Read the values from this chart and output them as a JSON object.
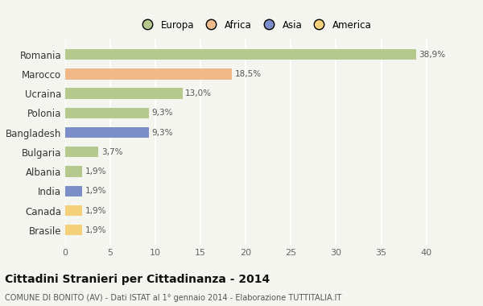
{
  "countries": [
    "Romania",
    "Marocco",
    "Ucraina",
    "Polonia",
    "Bangladesh",
    "Bulgaria",
    "Albania",
    "India",
    "Canada",
    "Brasile"
  ],
  "values": [
    38.9,
    18.5,
    13.0,
    9.3,
    9.3,
    3.7,
    1.9,
    1.9,
    1.9,
    1.9
  ],
  "labels": [
    "38,9%",
    "18,5%",
    "13,0%",
    "9,3%",
    "9,3%",
    "3,7%",
    "1,9%",
    "1,9%",
    "1,9%",
    "1,9%"
  ],
  "colors": [
    "#b5c98e",
    "#f0b98a",
    "#b5c98e",
    "#b5c98e",
    "#7b8ec8",
    "#b5c98e",
    "#b5c98e",
    "#7b8ec8",
    "#f5d07a",
    "#f5d07a"
  ],
  "legend_labels": [
    "Europa",
    "Africa",
    "Asia",
    "America"
  ],
  "legend_colors": [
    "#b5c98e",
    "#f0b98a",
    "#7b8ec8",
    "#f5d07a"
  ],
  "xlim": [
    0,
    42
  ],
  "xticks": [
    0,
    5,
    10,
    15,
    20,
    25,
    30,
    35,
    40
  ],
  "title": "Cittadini Stranieri per Cittadinanza - 2014",
  "subtitle": "COMUNE DI BONITO (AV) - Dati ISTAT al 1° gennaio 2014 - Elaborazione TUTTITALIA.IT",
  "background_color": "#f5f5f0",
  "grid_color": "#ffffff",
  "bar_height": 0.55
}
